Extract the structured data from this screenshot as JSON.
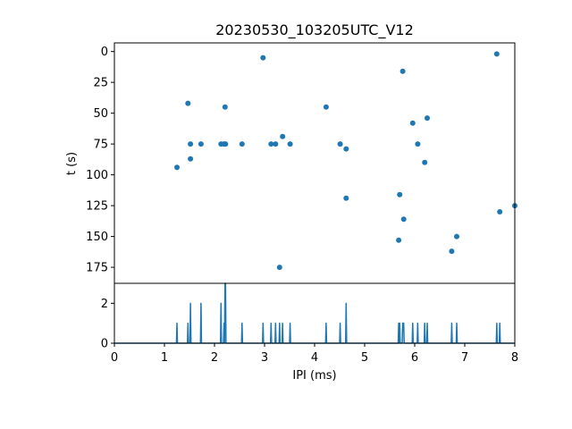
{
  "chart_data": [
    {
      "type": "scatter",
      "title": "20230530_103205UTC_V12",
      "xlabel": "",
      "ylabel": "t (s)",
      "xlim": [
        0,
        8
      ],
      "ylim": [
        188,
        -7
      ],
      "y_inverted": true,
      "grid": false,
      "color": "#1f77b4",
      "yticks": [
        "0",
        "25",
        "50",
        "75",
        "100",
        "125",
        "150",
        "175"
      ],
      "points": [
        {
          "x": 1.25,
          "y": 94
        },
        {
          "x": 1.47,
          "y": 42
        },
        {
          "x": 1.52,
          "y": 75
        },
        {
          "x": 1.52,
          "y": 87
        },
        {
          "x": 1.73,
          "y": 75
        },
        {
          "x": 2.13,
          "y": 75
        },
        {
          "x": 2.19,
          "y": 75
        },
        {
          "x": 2.21,
          "y": 45
        },
        {
          "x": 2.22,
          "y": 75
        },
        {
          "x": 2.55,
          "y": 75
        },
        {
          "x": 2.97,
          "y": 5
        },
        {
          "x": 3.13,
          "y": 75
        },
        {
          "x": 3.22,
          "y": 75
        },
        {
          "x": 3.3,
          "y": 175
        },
        {
          "x": 3.36,
          "y": 69
        },
        {
          "x": 3.51,
          "y": 75
        },
        {
          "x": 4.23,
          "y": 45
        },
        {
          "x": 4.51,
          "y": 75
        },
        {
          "x": 4.63,
          "y": 79
        },
        {
          "x": 4.63,
          "y": 119
        },
        {
          "x": 5.68,
          "y": 153
        },
        {
          "x": 5.7,
          "y": 116
        },
        {
          "x": 5.76,
          "y": 16
        },
        {
          "x": 5.78,
          "y": 136
        },
        {
          "x": 5.96,
          "y": 58
        },
        {
          "x": 6.06,
          "y": 75
        },
        {
          "x": 6.2,
          "y": 90
        },
        {
          "x": 6.25,
          "y": 54
        },
        {
          "x": 6.74,
          "y": 162
        },
        {
          "x": 6.84,
          "y": 150
        },
        {
          "x": 7.64,
          "y": 2
        },
        {
          "x": 7.7,
          "y": 130
        },
        {
          "x": 8.0,
          "y": 125
        }
      ]
    },
    {
      "type": "line",
      "title": "",
      "xlabel": "IPI (ms)",
      "ylabel": "",
      "xlim": [
        0,
        8
      ],
      "ylim": [
        0,
        3.0
      ],
      "grid": false,
      "color": "#1f77b4",
      "xticks": [
        "0",
        "1",
        "2",
        "3",
        "4",
        "5",
        "6",
        "7",
        "8"
      ],
      "yticks": [
        "0",
        "2"
      ],
      "x": [
        0,
        1.24,
        1.25,
        1.26,
        1.46,
        1.47,
        1.48,
        1.51,
        1.52,
        1.53,
        1.72,
        1.73,
        1.74,
        2.12,
        2.13,
        2.14,
        2.18,
        2.19,
        2.2,
        2.21,
        2.22,
        2.23,
        2.54,
        2.55,
        2.56,
        2.96,
        2.97,
        2.98,
        3.12,
        3.13,
        3.14,
        3.21,
        3.22,
        3.23,
        3.29,
        3.3,
        3.31,
        3.35,
        3.36,
        3.37,
        3.5,
        3.51,
        3.52,
        4.22,
        4.23,
        4.24,
        4.5,
        4.51,
        4.52,
        4.62,
        4.63,
        4.64,
        5.67,
        5.68,
        5.69,
        5.7,
        5.71,
        5.75,
        5.76,
        5.77,
        5.78,
        5.79,
        5.95,
        5.96,
        5.97,
        6.05,
        6.06,
        6.07,
        6.19,
        6.2,
        6.21,
        6.24,
        6.25,
        6.26,
        6.73,
        6.74,
        6.75,
        6.83,
        6.84,
        6.85,
        7.63,
        7.64,
        7.65,
        7.69,
        7.7,
        7.71,
        8.0
      ],
      "values": [
        0,
        0,
        1,
        0,
        0,
        1,
        0,
        0,
        2,
        0,
        0,
        2,
        0,
        0,
        2,
        0,
        0,
        1,
        0,
        3,
        3,
        0,
        0,
        1,
        0,
        0,
        1,
        0,
        0,
        1,
        0,
        0,
        1,
        0,
        0,
        1,
        0,
        0,
        1,
        0,
        0,
        1,
        0,
        0,
        1,
        0,
        0,
        1,
        0,
        0,
        2,
        0,
        0,
        1,
        0,
        1,
        0,
        0,
        1,
        1,
        1,
        0,
        0,
        1,
        0,
        0,
        1,
        0,
        0,
        1,
        0,
        0,
        1,
        0,
        0,
        1,
        0,
        0,
        1,
        0,
        0,
        1,
        0,
        0,
        1,
        0,
        0
      ]
    }
  ]
}
